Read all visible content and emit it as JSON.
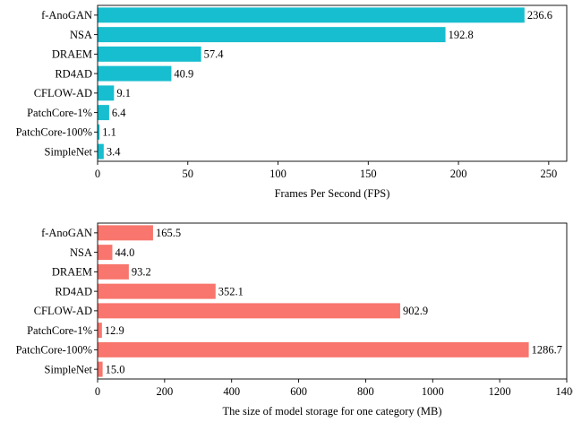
{
  "chart_data": [
    {
      "type": "bar",
      "orientation": "horizontal",
      "color": "#17becf",
      "categories": [
        "f-AnoGAN",
        "NSA",
        "DRAEM",
        "RD4AD",
        "CFLOW-AD",
        "PatchCore-1%",
        "PatchCore-100%",
        "SimpleNet"
      ],
      "values": [
        236.6,
        192.8,
        57.4,
        40.9,
        9.1,
        6.4,
        1.1,
        3.4
      ],
      "value_labels": [
        "236.6",
        "192.8",
        "57.4",
        "40.9",
        "9.1",
        "6.4",
        "1.1",
        "3.4"
      ],
      "xlabel": "Frames Per Second (FPS)",
      "xlim": [
        0,
        260
      ],
      "xticks": [
        0,
        50,
        100,
        150,
        200,
        250
      ],
      "grid": false
    },
    {
      "type": "bar",
      "orientation": "horizontal",
      "color": "#f8766d",
      "categories": [
        "f-AnoGAN",
        "NSA",
        "DRAEM",
        "RD4AD",
        "CFLOW-AD",
        "PatchCore-1%",
        "PatchCore-100%",
        "SimpleNet"
      ],
      "values": [
        165.5,
        44.0,
        93.2,
        352.1,
        902.9,
        12.9,
        1286.7,
        15.0
      ],
      "value_labels": [
        "165.5",
        "44.0",
        "93.2",
        "352.1",
        "902.9",
        "12.9",
        "1286.7",
        "15.0"
      ],
      "xlabel": "The size of model storage for one category (MB)",
      "xlim": [
        0,
        1400
      ],
      "xticks": [
        0,
        200,
        400,
        600,
        800,
        1000,
        1200,
        1400
      ],
      "grid": false
    }
  ]
}
